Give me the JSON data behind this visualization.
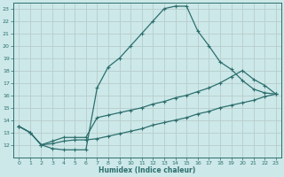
{
  "xlabel": "Humidex (Indice chaleur)",
  "bg_color": "#cce8e8",
  "grid_color": "#aacccc",
  "line_color": "#2d6e6e",
  "xlim": [
    -0.5,
    23.5
  ],
  "ylim": [
    11.0,
    23.5
  ],
  "yticks": [
    12,
    13,
    14,
    15,
    16,
    17,
    18,
    19,
    20,
    21,
    22,
    23
  ],
  "xticks": [
    0,
    1,
    2,
    3,
    4,
    5,
    6,
    7,
    8,
    9,
    10,
    11,
    12,
    13,
    14,
    15,
    16,
    17,
    18,
    19,
    20,
    21,
    22,
    23
  ],
  "line1_x": [
    0,
    1,
    2,
    3,
    4,
    5,
    6,
    7,
    8,
    9,
    10,
    11,
    12,
    13,
    14,
    15,
    16,
    17,
    18,
    19,
    20,
    21,
    22,
    23
  ],
  "line1_y": [
    13.5,
    13.0,
    12.0,
    11.7,
    11.6,
    11.6,
    11.6,
    16.6,
    18.3,
    19.0,
    20.0,
    21.0,
    22.0,
    23.0,
    23.2,
    23.2,
    21.2,
    20.0,
    18.7,
    18.1,
    17.2,
    16.5,
    16.2,
    16.1
  ],
  "line2_x": [
    0,
    1,
    2,
    3,
    4,
    5,
    6,
    7,
    8,
    9,
    10,
    11,
    12,
    13,
    14,
    15,
    16,
    17,
    18,
    19,
    20,
    21,
    22,
    23
  ],
  "line2_y": [
    13.5,
    13.0,
    12.0,
    12.3,
    12.6,
    12.6,
    12.6,
    14.2,
    14.4,
    14.6,
    14.8,
    15.0,
    15.3,
    15.5,
    15.8,
    16.0,
    16.3,
    16.6,
    17.0,
    17.5,
    18.0,
    17.3,
    16.8,
    16.1
  ],
  "line3_x": [
    0,
    1,
    2,
    3,
    4,
    5,
    6,
    7,
    8,
    9,
    10,
    11,
    12,
    13,
    14,
    15,
    16,
    17,
    18,
    19,
    20,
    21,
    22,
    23
  ],
  "line3_y": [
    13.5,
    13.0,
    12.0,
    12.1,
    12.3,
    12.4,
    12.4,
    12.5,
    12.7,
    12.9,
    13.1,
    13.3,
    13.6,
    13.8,
    14.0,
    14.2,
    14.5,
    14.7,
    15.0,
    15.2,
    15.4,
    15.6,
    15.9,
    16.1
  ]
}
